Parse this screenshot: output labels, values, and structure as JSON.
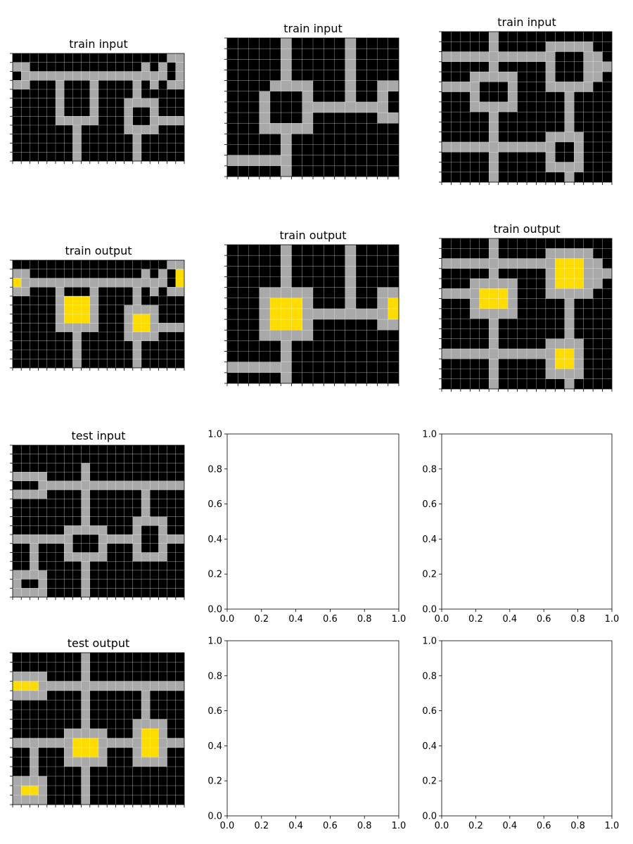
{
  "colors": {
    "0": "#000000",
    "5": "#a9a9a9",
    "4": "#ffdc00",
    "grid_line": "#ffffff",
    "axis": "#000000",
    "background": "#ffffff"
  },
  "panels": [
    {
      "id": "train-input-1",
      "title": "train input",
      "grid": [
        "00000000000000000055",
        "55000000000000050505",
        "05555555555555555505",
        "55000500050000505055",
        "00000500050000500000",
        "00000500050005555000",
        "00000500050005005000",
        "00000555550005005555",
        "00000005000005555000",
        "00000005000000500000",
        "00000005000000500000",
        "00000005000000500000"
      ]
    },
    {
      "id": "train-input-2",
      "title": "train input",
      "grid": [
        "0000050000050000",
        "0000050000050000",
        "0000050000050000",
        "0000050000050000",
        "0003555500050055",
        "0005000500050050",
        "0005000555555550",
        "0005000500000055",
        "0005555500000000",
        "0000050000000000",
        "0000050000000000",
        "5555550000000000",
        "0000050000000000"
      ]
    },
    {
      "id": "train-input-3",
      "title": "train input",
      "grid": [
        "000005000000000000",
        "000005000005555500",
        "555555555555000550",
        "000005000005000555",
        "000555550005000550",
        "555500050005555500",
        "000500050000050000",
        "000555550000050000",
        "000005000000050000",
        "000005000000050000",
        "000005000005555000",
        "555555555555005000",
        "000005000005005000",
        "000005000005555000",
        "000005000000050000"
      ]
    },
    {
      "id": "train-output-1",
      "title": "train output",
      "grid": [
        "00000000000000000055",
        "55000000000000050504",
        "45555555555555555504",
        "55000500050000505055",
        "00000544450000500000",
        "00000544450005555000",
        "00000544450005445000",
        "00000555550005445555",
        "00000005000005555000",
        "00000005000000500000",
        "00000005000000500000",
        "00000005000000500000"
      ]
    },
    {
      "id": "train-output-2",
      "title": "train output",
      "grid": [
        "0000050000050000",
        "0000050000050000",
        "0000050000050000",
        "0000050000050000",
        "0005555500050055",
        "0005444500050054",
        "0005444555555554",
        "0005444500000055",
        "0005555500000000",
        "0000050000000000",
        "0000050000000000",
        "5555550000000000",
        "0000050000000000"
      ]
    },
    {
      "id": "train-output-3",
      "title": "train output",
      "grid": [
        "000005000000000000",
        "000005000005555500",
        "555555555555444550",
        "000005000005444555",
        "000555550005444550",
        "555544450005555500",
        "000544450000050000",
        "000555550000050000",
        "000005000000050000",
        "000005000000050000",
        "000005000005555000",
        "555555555555445000",
        "000005000005445000",
        "000005000005555000",
        "000005000000050000"
      ]
    },
    {
      "id": "test-input",
      "title": "test input",
      "grid": [
        "00000000000000000000",
        "00000000000000000000",
        "00000000500000000000",
        "55550000500000000000",
        "00055555555555555555",
        "55550000500000050000",
        "00000000500000050000",
        "00000000500000050000",
        "00000000500000555500",
        "00000055555000500500",
        "55555550005555500555",
        "00500050005000500500",
        "00500055555000555500",
        "00500000500000000000",
        "55550000500000000000",
        "50050000500000000000",
        "55550000500000000000"
      ]
    },
    {
      "id": "test-output",
      "title": "test output",
      "grid": [
        "00000000500000000000",
        "00000000500000000000",
        "55550000500000000000",
        "44455555555555555555",
        "55550000500000050000",
        "00000000500000050000",
        "00000000500000050000",
        "00000000500000555500",
        "00000055555000544500",
        "55555554445555544555",
        "00500054445000544500",
        "00500055555000555500",
        "00500000500000000000",
        "55550000500000000000",
        "54450000500000000000",
        "55550000500000000000"
      ]
    }
  ],
  "empty_axes": {
    "ticks": [
      "0.0",
      "0.2",
      "0.4",
      "0.6",
      "0.8",
      "1.0"
    ],
    "count": 4
  }
}
